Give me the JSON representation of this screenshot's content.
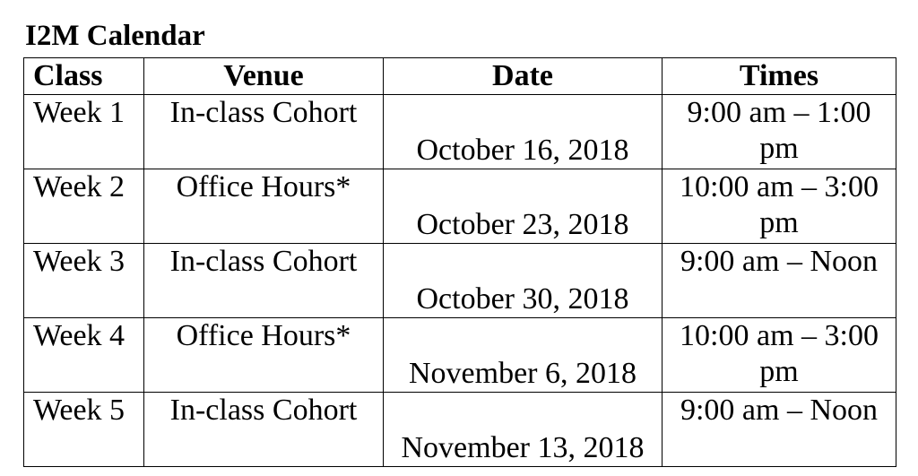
{
  "title": "I2M Calendar",
  "columns": [
    "Class",
    "Venue",
    "Date",
    "Times"
  ],
  "rows": [
    {
      "class": "Week 1",
      "venue": "In-class Cohort",
      "date": "October 16, 2018",
      "times": "9:00 am – 1:00 pm"
    },
    {
      "class": "Week 2",
      "venue": "Office Hours*",
      "date": "October 23, 2018",
      "times": "10:00 am – 3:00 pm"
    },
    {
      "class": "Week 3",
      "venue": "In-class Cohort",
      "date": "October 30, 2018",
      "times": "9:00 am – Noon"
    },
    {
      "class": "Week 4",
      "venue": "Office Hours*",
      "date": "November 6, 2018",
      "times": "10:00 am – 3:00 pm"
    },
    {
      "class": "Week 5",
      "venue": "In-class Cohort",
      "date": "November 13, 2018",
      "times": "9:00 am – Noon"
    }
  ]
}
